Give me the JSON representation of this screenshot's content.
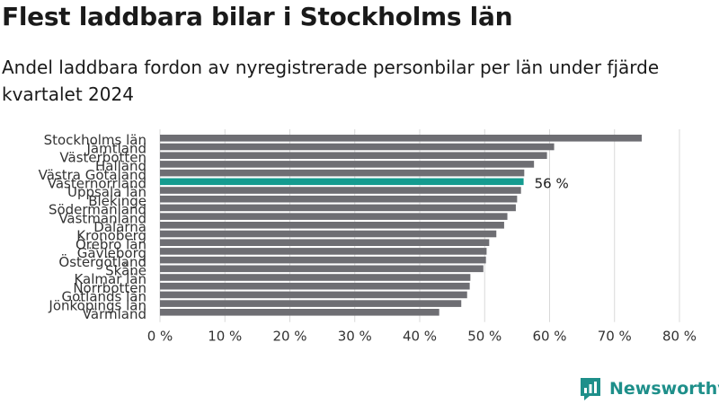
{
  "title": "Flest laddbara bilar i Stockholms län",
  "subtitle": "Andel laddbara fordon av nyregistrerade personbilar per län under fjärde kvartalet 2024",
  "brand": "Newsworthy",
  "colors": {
    "bar": "#6e6e73",
    "highlight": "#149b8f",
    "grid": "#d9d9d9",
    "brand": "#1e8f8a"
  },
  "chart_data": {
    "type": "bar",
    "orientation": "horizontal",
    "categories": [
      "Stockholms län",
      "Jämtland",
      "Västerbotten",
      "Halland",
      "Västra Götaland",
      "Västernorrland",
      "Uppsala län",
      "Blekinge",
      "Södermanland",
      "Västmanland",
      "Dalarna",
      "Kronoberg",
      "Örebro län",
      "Gävleborg",
      "Östergötland",
      "Skåne",
      "Kalmar län",
      "Norrbotten",
      "Gotlands län",
      "Jönköpings län",
      "Värmland"
    ],
    "values": [
      74.2,
      60.7,
      59.6,
      57.6,
      56.1,
      56.0,
      55.6,
      55.0,
      54.8,
      53.5,
      53.0,
      51.8,
      50.7,
      50.3,
      50.2,
      49.8,
      47.8,
      47.7,
      47.3,
      46.4,
      43.0
    ],
    "highlight_category": "Västernorrland",
    "highlight_label": "56 %",
    "xlim": [
      0,
      80
    ],
    "xticks": [
      "0 %",
      "10 %",
      "20 %",
      "30 %",
      "40 %",
      "50 %",
      "60 %",
      "70 %",
      "80 %"
    ],
    "xlabel": "",
    "ylabel": "",
    "grid": true,
    "legend": "none"
  }
}
